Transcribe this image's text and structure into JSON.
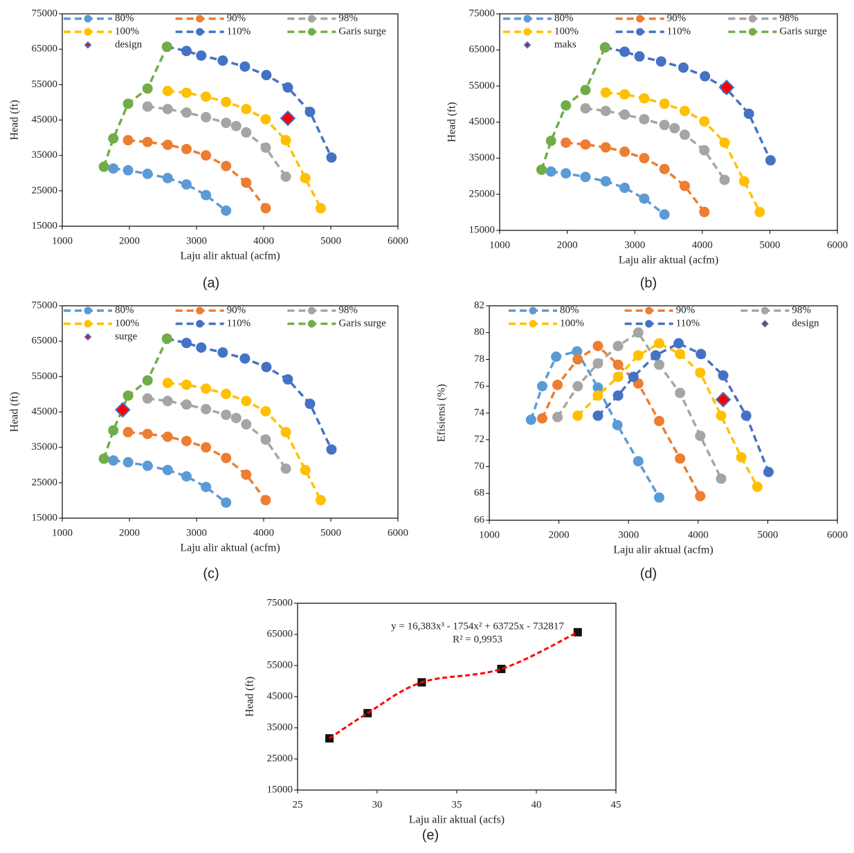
{
  "chart_data": [
    {
      "type": "line",
      "caption": "(a)",
      "x_label": "Laju alir aktual (acfm)",
      "y_label": "Head (ft)",
      "xlim": [
        1000,
        6000
      ],
      "xticks": [
        1000,
        2000,
        3000,
        4000,
        5000,
        6000
      ],
      "ylim": [
        15000,
        75000
      ],
      "yticks": [
        15000,
        25000,
        35000,
        45000,
        55000,
        65000,
        75000
      ],
      "series": [
        {
          "name": "80%",
          "color": "#5b9bd5",
          "marker": "circle",
          "line": "dashed",
          "x": [
            1760,
            1980,
            2270,
            2570,
            2850,
            3140,
            3440
          ],
          "values": [
            31300,
            30800,
            29800,
            28600,
            26800,
            23800,
            19400
          ]
        },
        {
          "name": "90%",
          "color": "#ed7d31",
          "marker": "circle",
          "line": "dashed",
          "x": [
            1980,
            2270,
            2570,
            2850,
            3140,
            3440,
            3740,
            4030
          ],
          "values": [
            39300,
            38800,
            38000,
            36800,
            35000,
            32000,
            27300,
            20100
          ]
        },
        {
          "name": "98%",
          "color": "#a5a5a5",
          "marker": "circle",
          "line": "dashed",
          "x": [
            2270,
            2570,
            2850,
            3140,
            3440,
            3590,
            3740,
            4030,
            4330
          ],
          "values": [
            48800,
            48100,
            47100,
            45800,
            44200,
            43300,
            41500,
            37200,
            29000
          ]
        },
        {
          "name": "100%",
          "color": "#ffc000",
          "marker": "circle",
          "line": "dashed",
          "x": [
            2570,
            2850,
            3140,
            3440,
            3740,
            4030,
            4330,
            4620,
            4850
          ],
          "values": [
            53200,
            52700,
            51600,
            50100,
            48100,
            45200,
            39300,
            28600,
            20100
          ]
        },
        {
          "name": "110%",
          "color": "#4472c4",
          "marker": "circle",
          "line": "dashed",
          "x": [
            2560,
            2850,
            3070,
            3390,
            3720,
            4040,
            4360,
            4690,
            5010
          ],
          "values": [
            65700,
            64500,
            63200,
            61800,
            60100,
            57700,
            54200,
            47300,
            34400
          ]
        },
        {
          "name": "Garis surge",
          "color": "#70ad47",
          "marker": "circle",
          "line": "dashed",
          "x": [
            1620,
            1760,
            1980,
            2270,
            2560
          ],
          "values": [
            31800,
            39800,
            49600,
            53900,
            65700
          ]
        },
        {
          "name": "design",
          "color": "#ff0000",
          "marker": "diamond",
          "line": "none",
          "x": [
            4360
          ],
          "values": [
            45500
          ]
        }
      ]
    },
    {
      "type": "line",
      "caption": "(b)",
      "x_label": "Laju alir aktual (acfm)",
      "y_label": "Head (ft)",
      "xlim": [
        1000,
        6000
      ],
      "xticks": [
        1000,
        2000,
        3000,
        4000,
        5000,
        6000
      ],
      "ylim": [
        15000,
        75000
      ],
      "yticks": [
        15000,
        25000,
        35000,
        45000,
        55000,
        65000,
        75000
      ],
      "series": [
        {
          "name": "80%",
          "color": "#5b9bd5",
          "marker": "circle",
          "line": "dashed",
          "x": [
            1760,
            1980,
            2270,
            2570,
            2850,
            3140,
            3440
          ],
          "values": [
            31300,
            30800,
            29800,
            28600,
            26800,
            23800,
            19400
          ]
        },
        {
          "name": "90%",
          "color": "#ed7d31",
          "marker": "circle",
          "line": "dashed",
          "x": [
            1980,
            2270,
            2570,
            2850,
            3140,
            3440,
            3740,
            4030
          ],
          "values": [
            39300,
            38800,
            38000,
            36800,
            35000,
            32000,
            27300,
            20100
          ]
        },
        {
          "name": "98%",
          "color": "#a5a5a5",
          "marker": "circle",
          "line": "dashed",
          "x": [
            2270,
            2570,
            2850,
            3140,
            3440,
            3590,
            3740,
            4030,
            4330
          ],
          "values": [
            48800,
            48100,
            47100,
            45800,
            44200,
            43300,
            41500,
            37200,
            29000
          ]
        },
        {
          "name": "100%",
          "color": "#ffc000",
          "marker": "circle",
          "line": "dashed",
          "x": [
            2570,
            2850,
            3140,
            3440,
            3740,
            4030,
            4330,
            4620,
            4850
          ],
          "values": [
            53200,
            52700,
            51600,
            50100,
            48100,
            45200,
            39300,
            28600,
            20100
          ]
        },
        {
          "name": "110%",
          "color": "#4472c4",
          "marker": "circle",
          "line": "dashed",
          "x": [
            2560,
            2850,
            3070,
            3390,
            3720,
            4040,
            4360,
            4690,
            5010
          ],
          "values": [
            65700,
            64500,
            63200,
            61800,
            60100,
            57700,
            54200,
            47300,
            34400
          ]
        },
        {
          "name": "Garis surge",
          "color": "#70ad47",
          "marker": "circle",
          "line": "dashed",
          "x": [
            1620,
            1760,
            1980,
            2270,
            2560
          ],
          "values": [
            31800,
            39800,
            49600,
            53900,
            65700
          ]
        },
        {
          "name": "maks",
          "color": "#ff0000",
          "marker": "diamond",
          "line": "none",
          "x": [
            4360
          ],
          "values": [
            54600
          ]
        }
      ]
    },
    {
      "type": "line",
      "caption": "(c)",
      "x_label": "Laju alir aktual (acfm)",
      "y_label": "Head (ft)",
      "xlim": [
        1000,
        6000
      ],
      "xticks": [
        1000,
        2000,
        3000,
        4000,
        5000,
        6000
      ],
      "ylim": [
        15000,
        75000
      ],
      "yticks": [
        15000,
        25000,
        35000,
        45000,
        55000,
        65000,
        75000
      ],
      "series": [
        {
          "name": "80%",
          "color": "#5b9bd5",
          "marker": "circle",
          "line": "dashed",
          "x": [
            1760,
            1980,
            2270,
            2570,
            2850,
            3140,
            3440
          ],
          "values": [
            31300,
            30800,
            29800,
            28600,
            26800,
            23800,
            19400
          ]
        },
        {
          "name": "90%",
          "color": "#ed7d31",
          "marker": "circle",
          "line": "dashed",
          "x": [
            1980,
            2270,
            2570,
            2850,
            3140,
            3440,
            3740,
            4030
          ],
          "values": [
            39300,
            38800,
            38000,
            36800,
            35000,
            32000,
            27300,
            20100
          ]
        },
        {
          "name": "98%",
          "color": "#a5a5a5",
          "marker": "circle",
          "line": "dashed",
          "x": [
            2270,
            2570,
            2850,
            3140,
            3440,
            3590,
            3740,
            4030,
            4330
          ],
          "values": [
            48800,
            48100,
            47100,
            45800,
            44200,
            43300,
            41500,
            37200,
            29000
          ]
        },
        {
          "name": "100%",
          "color": "#ffc000",
          "marker": "circle",
          "line": "dashed",
          "x": [
            2570,
            2850,
            3140,
            3440,
            3740,
            4030,
            4330,
            4620,
            4850
          ],
          "values": [
            53200,
            52700,
            51600,
            50100,
            48100,
            45200,
            39300,
            28600,
            20100
          ]
        },
        {
          "name": "110%",
          "color": "#4472c4",
          "marker": "circle",
          "line": "dashed",
          "x": [
            2560,
            2850,
            3070,
            3390,
            3720,
            4040,
            4360,
            4690,
            5010
          ],
          "values": [
            65700,
            64500,
            63200,
            61800,
            60100,
            57700,
            54200,
            47300,
            34400
          ]
        },
        {
          "name": "Garis surge",
          "color": "#70ad47",
          "marker": "circle",
          "line": "dashed",
          "x": [
            1620,
            1760,
            1980,
            2270,
            2560
          ],
          "values": [
            31800,
            39800,
            49600,
            53900,
            65700
          ]
        },
        {
          "name": "surge",
          "color": "#ff0000",
          "marker": "diamond",
          "line": "none",
          "x": [
            1900
          ],
          "values": [
            45600
          ]
        }
      ]
    },
    {
      "type": "line",
      "caption": "(d)",
      "x_label": "Laju alir aktual (acfm)",
      "y_label": "Efisiensi (%)",
      "xlim": [
        1000,
        6000
      ],
      "xticks": [
        1000,
        2000,
        3000,
        4000,
        5000,
        6000
      ],
      "ylim": [
        66,
        82
      ],
      "yticks": [
        66,
        68,
        70,
        72,
        74,
        76,
        78,
        80,
        82
      ],
      "series": [
        {
          "name": "80%",
          "color": "#5b9bd5",
          "marker": "circle",
          "line": "dashed",
          "x": [
            1600,
            1760,
            1960,
            2260,
            2560,
            2840,
            3140,
            3440
          ],
          "values": [
            73.5,
            76.0,
            78.2,
            78.6,
            75.9,
            73.1,
            70.4,
            67.7
          ]
        },
        {
          "name": "90%",
          "color": "#ed7d31",
          "marker": "circle",
          "line": "dashed",
          "x": [
            1760,
            1980,
            2270,
            2560,
            2850,
            3140,
            3440,
            3740,
            4030
          ],
          "values": [
            73.6,
            76.1,
            78.0,
            79.0,
            77.6,
            76.2,
            73.4,
            70.6,
            67.8
          ]
        },
        {
          "name": "98%",
          "color": "#a5a5a5",
          "marker": "circle",
          "line": "dashed",
          "x": [
            1980,
            2270,
            2560,
            2850,
            3140,
            3440,
            3740,
            4030,
            4330
          ],
          "values": [
            73.7,
            76.0,
            77.7,
            79.0,
            80.0,
            77.6,
            75.5,
            72.3,
            69.1
          ]
        },
        {
          "name": "100%",
          "color": "#ffc000",
          "marker": "circle",
          "line": "dashed",
          "x": [
            2270,
            2560,
            2850,
            3140,
            3440,
            3740,
            4030,
            4330,
            4620,
            4850
          ],
          "values": [
            73.8,
            75.3,
            76.7,
            78.3,
            79.2,
            78.4,
            77.0,
            73.8,
            70.7,
            68.5
          ]
        },
        {
          "name": "110%",
          "color": "#4472c4",
          "marker": "circle",
          "line": "dashed",
          "x": [
            2560,
            2850,
            3070,
            3390,
            3720,
            4040,
            4360,
            4690,
            5010
          ],
          "values": [
            73.8,
            75.3,
            76.7,
            78.3,
            79.2,
            78.4,
            76.8,
            73.8,
            69.6
          ]
        },
        {
          "name": "design",
          "color": "#ff0000",
          "marker": "diamond",
          "line": "none",
          "x": [
            4360
          ],
          "values": [
            75.0
          ]
        }
      ]
    },
    {
      "type": "scatter",
      "caption": "(e)",
      "x_label": "Laju alir aktual (acfs)",
      "y_label": "Head (ft)",
      "xlim": [
        25,
        45
      ],
      "xticks": [
        25,
        30,
        35,
        40,
        45
      ],
      "ylim": [
        15000,
        75000
      ],
      "yticks": [
        15000,
        25000,
        35000,
        45000,
        55000,
        65000,
        75000
      ],
      "series": [
        {
          "color": "#111111",
          "marker": "square",
          "line": "none",
          "x": [
            27,
            29.4,
            32.8,
            37.8,
            42.6
          ],
          "values": [
            31600,
            39700,
            49600,
            53900,
            65700
          ]
        }
      ],
      "trendline": {
        "color": "#ff0000",
        "equation": "y = 16,383x³  - 1754x² + 63725x - 732817",
        "r_squared": "R² = 0,9953"
      }
    }
  ]
}
